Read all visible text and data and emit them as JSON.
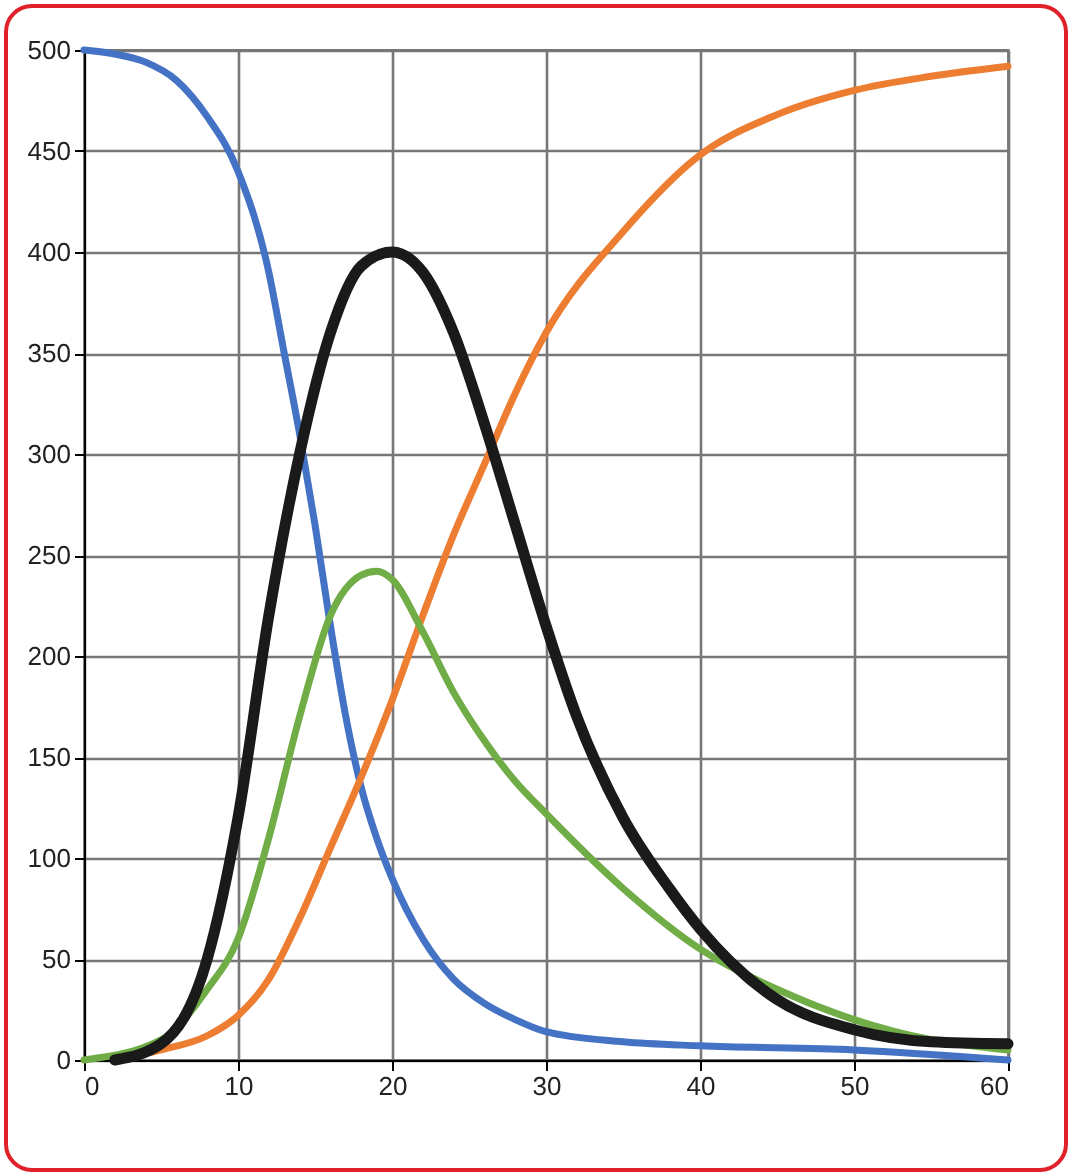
{
  "chart_data": {
    "type": "line",
    "xlim": [
      0,
      60
    ],
    "ylim": [
      0,
      500
    ],
    "xticks": [
      0,
      10,
      20,
      30,
      40,
      50,
      60
    ],
    "yticks": [
      0,
      50,
      100,
      150,
      200,
      250,
      300,
      350,
      400,
      450,
      500
    ],
    "grid": true,
    "marker": "none",
    "line_style": "solid",
    "series": [
      {
        "color": "#4472c4",
        "x": [
          0,
          2,
          4,
          6,
          8,
          10,
          12,
          13,
          14,
          15,
          16,
          17,
          18,
          19,
          20,
          22,
          24,
          26,
          28,
          30,
          35,
          40,
          50,
          60
        ],
        "values": [
          500,
          498,
          494,
          485,
          467,
          440,
          390,
          350,
          310,
          265,
          215,
          170,
          135,
          110,
          90,
          60,
          40,
          28,
          20,
          14,
          9,
          7,
          5,
          0
        ]
      },
      {
        "color": "#ed7d31",
        "x": [
          2,
          5,
          8,
          10,
          12,
          14,
          16,
          18,
          20,
          22,
          24,
          26,
          28,
          30,
          35,
          40,
          45,
          50,
          55,
          60
        ],
        "values": [
          0,
          5,
          12,
          22,
          40,
          70,
          105,
          140,
          178,
          220,
          260,
          295,
          330,
          360,
          410,
          448,
          468,
          480,
          487,
          492
        ]
      },
      {
        "color": "#70ad47",
        "x": [
          0,
          5,
          8,
          10,
          12,
          14,
          16,
          18,
          19,
          20,
          22,
          24,
          26,
          28,
          30,
          35,
          40,
          45,
          50,
          55,
          60
        ],
        "values": [
          0,
          10,
          35,
          60,
          110,
          170,
          220,
          240,
          242,
          238,
          212,
          182,
          158,
          138,
          122,
          85,
          55,
          35,
          20,
          10,
          5
        ]
      },
      {
        "color": "#1a1a1a",
        "x": [
          2,
          5,
          8,
          10,
          12,
          14,
          16,
          18,
          20,
          22,
          24,
          26,
          28,
          30,
          32,
          35,
          38,
          40,
          45,
          50,
          55,
          60
        ],
        "values": [
          0,
          8,
          50,
          120,
          220,
          300,
          360,
          393,
          400,
          390,
          360,
          315,
          265,
          215,
          170,
          120,
          85,
          65,
          30,
          15,
          9,
          8
        ]
      }
    ]
  }
}
